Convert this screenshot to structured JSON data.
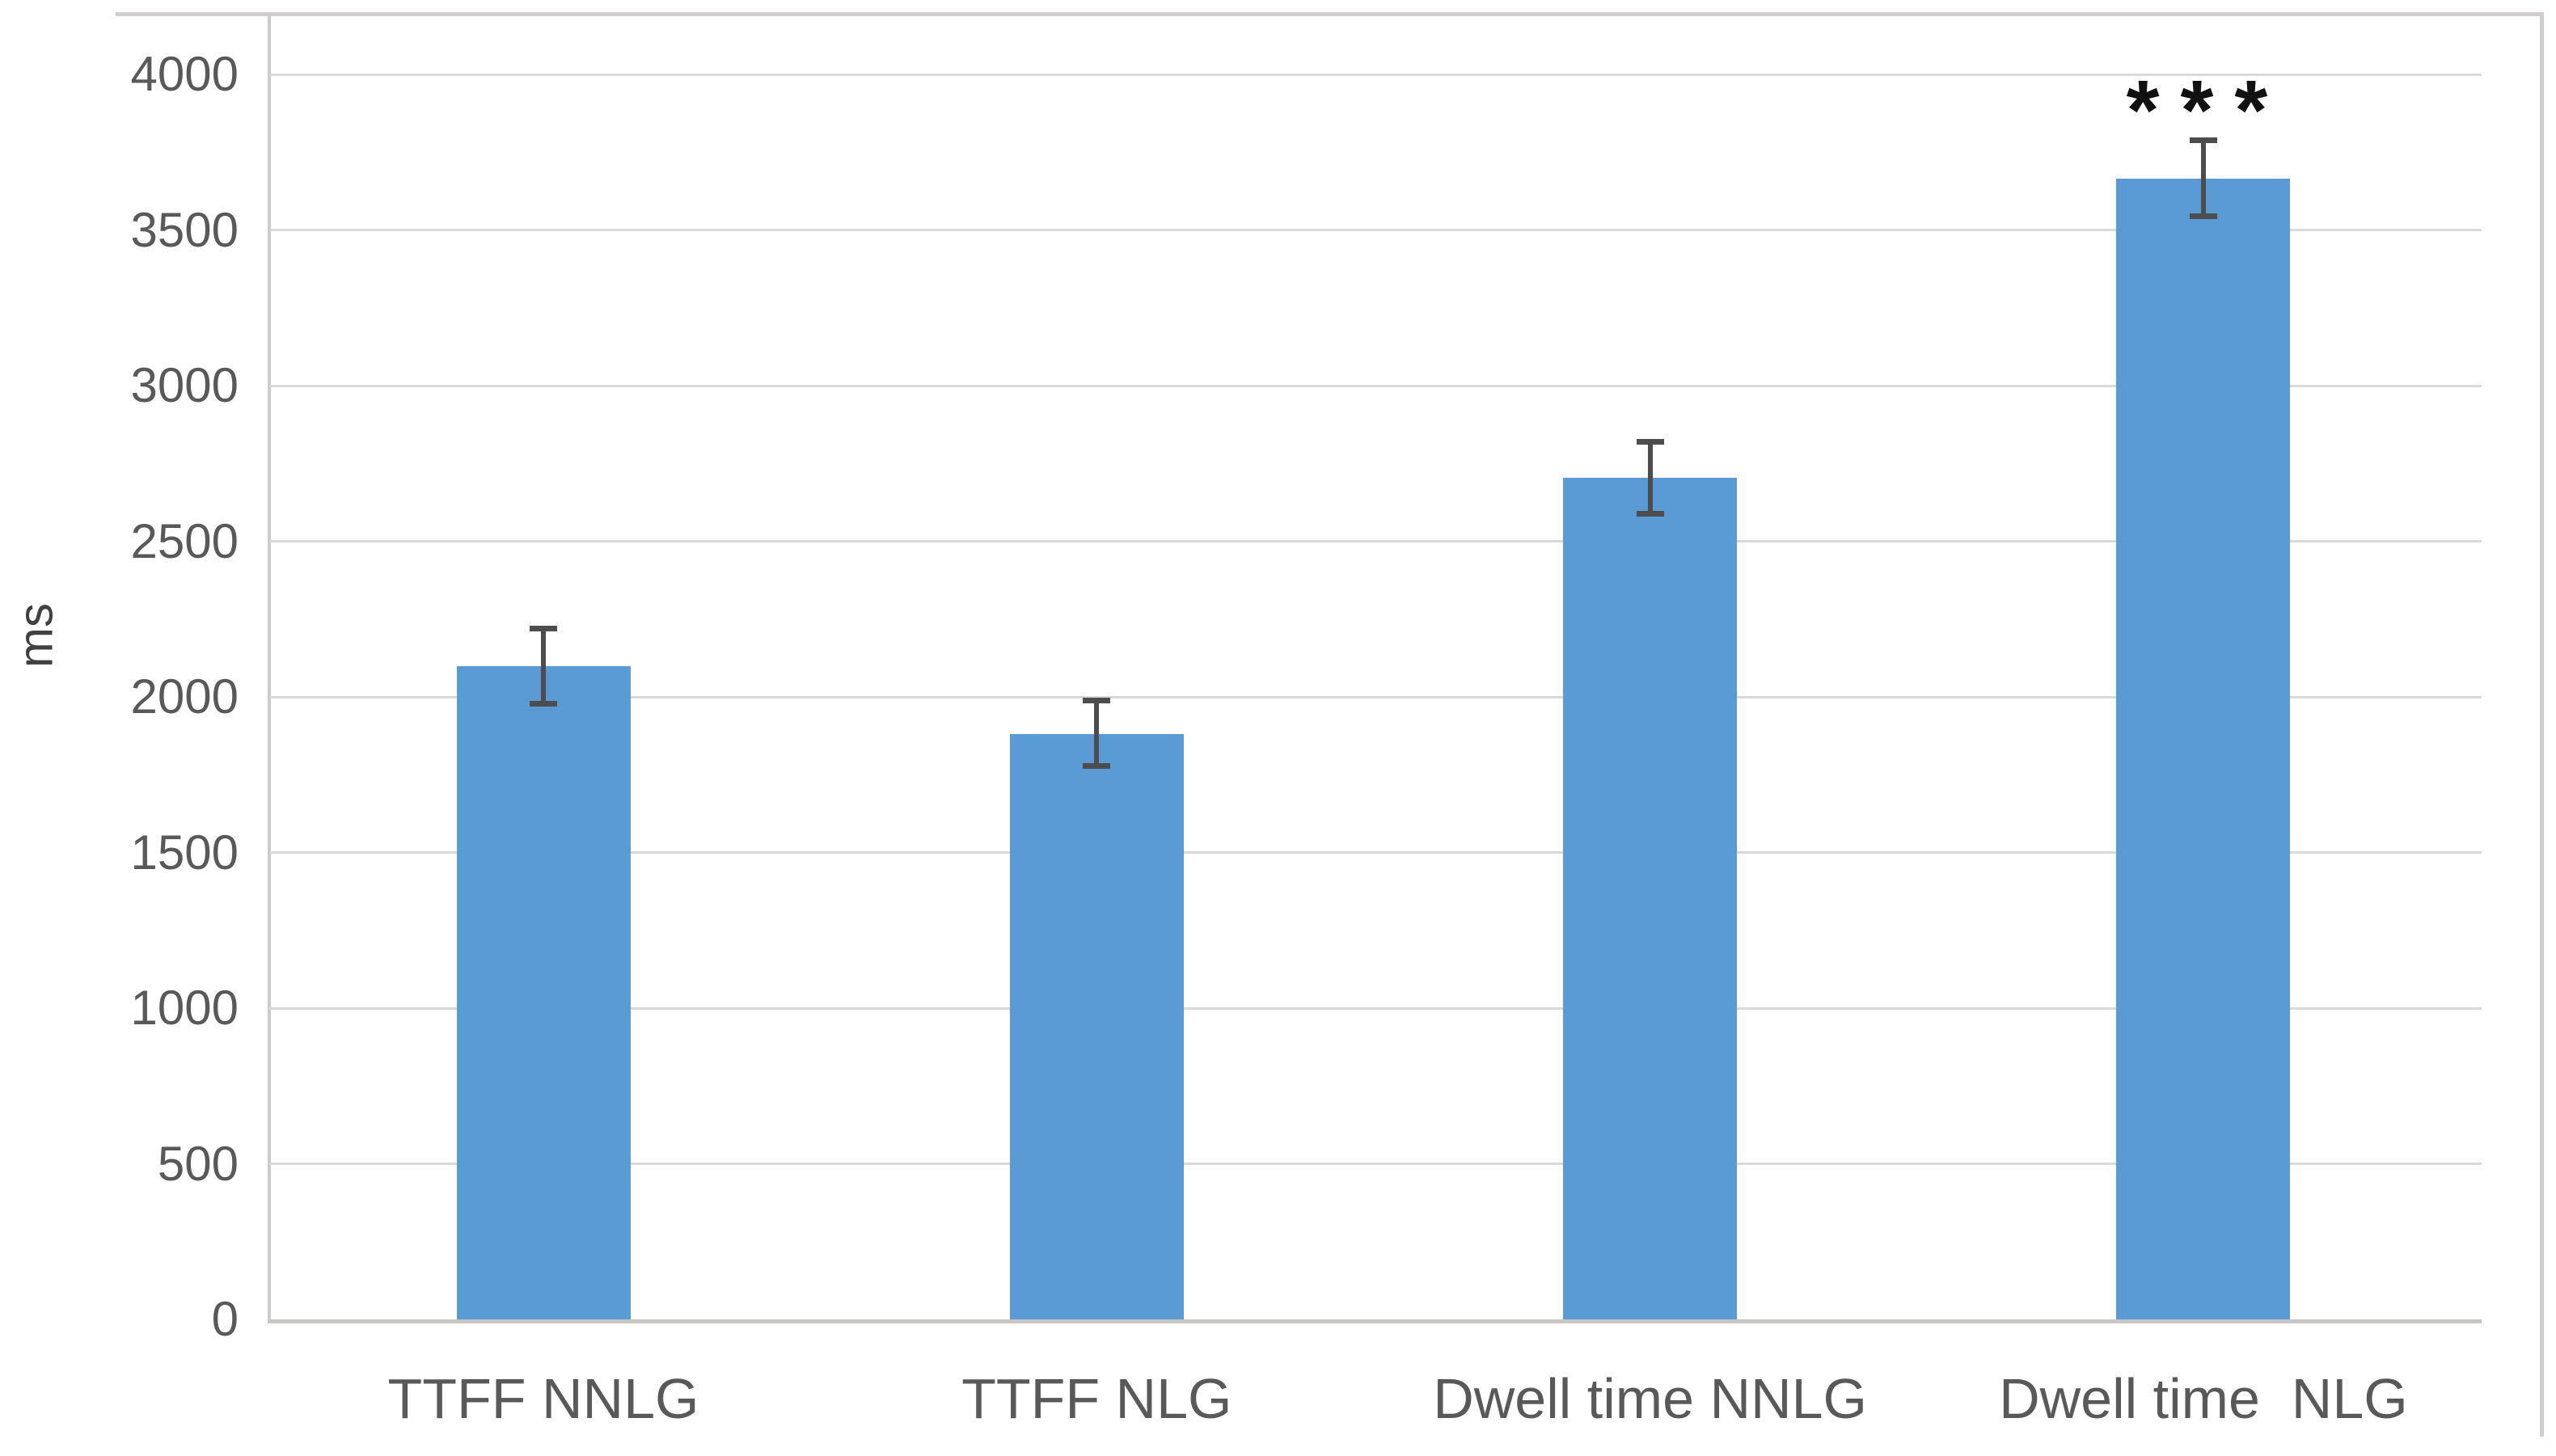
{
  "figure": {
    "background_color": "#ffffff"
  },
  "chart_data": {
    "type": "bar",
    "title": "",
    "xlabel": "",
    "ylabel": "ms",
    "categories": [
      "TTFF NNLG",
      "TTFF NLG",
      "Dwell time NNLG",
      "Dwell time  NLG"
    ],
    "values": [
      2100,
      1880,
      2705,
      3665
    ],
    "error_bars": {
      "upper": [
        2220,
        1990,
        2820,
        3790
      ],
      "lower": [
        1980,
        1780,
        2590,
        3545
      ]
    },
    "ylim": [
      0,
      4000
    ],
    "ytick_step": 500,
    "yticks": [
      0,
      500,
      1000,
      1500,
      2000,
      2500,
      3000,
      3500,
      4000
    ],
    "grid": true,
    "legend": "none",
    "annotations": [
      {
        "text": "***",
        "category_index": 3,
        "meaning": "statistical significance"
      }
    ],
    "colors": {
      "bar_fill": "#5b9bd5",
      "gridline": "#d9d9d9",
      "axis_line": "#c8c6c4",
      "chart_border": "#d0cece",
      "tick_text": "#595959",
      "error_bar": "#4d4d4d",
      "annotation_text": "#111111"
    }
  }
}
